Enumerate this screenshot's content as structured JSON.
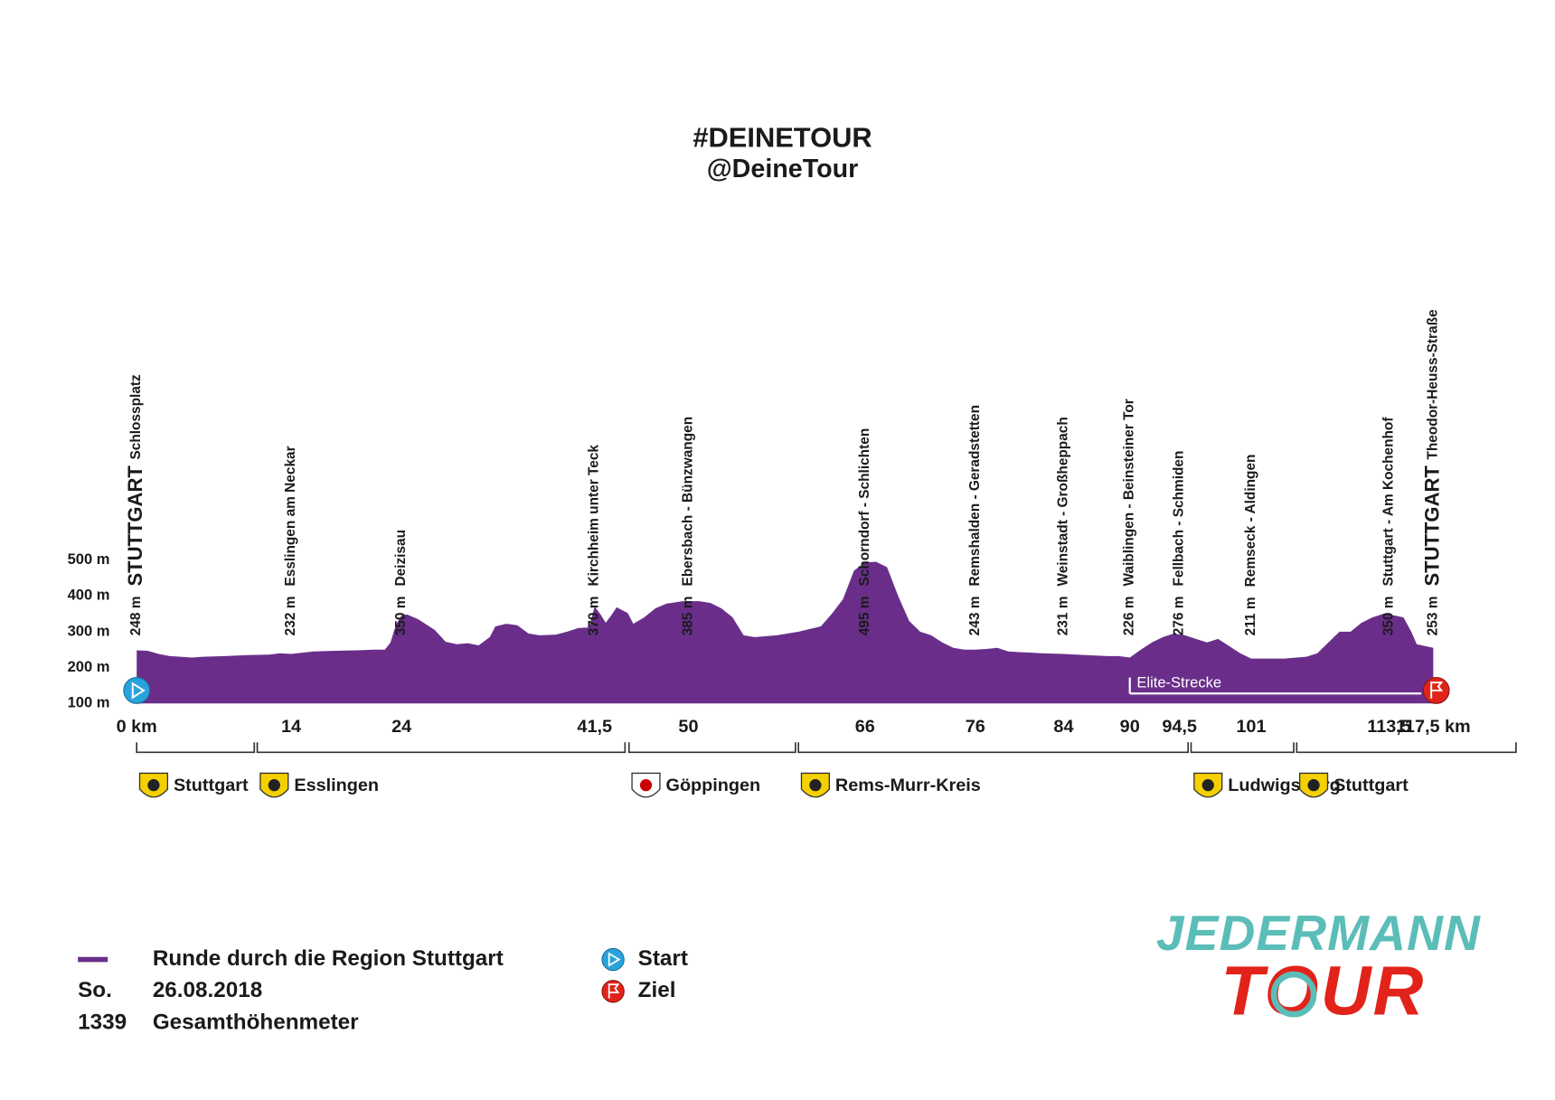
{
  "chart_data": {
    "type": "area",
    "title": "#DEINETOUR",
    "subtitle": "@DeineTour",
    "xlim": [
      0,
      117.5
    ],
    "ylim": [
      100,
      500
    ],
    "yticks": [
      {
        "value": 100,
        "label": "100 m"
      },
      {
        "value": 200,
        "label": "200 m"
      },
      {
        "value": 300,
        "label": "300 m"
      },
      {
        "value": 400,
        "label": "400 m"
      },
      {
        "value": 500,
        "label": "500 m"
      }
    ],
    "xticks": [
      {
        "value": 0,
        "label": "0 km"
      },
      14,
      24,
      {
        "value": 41.5,
        "label": "41,5"
      },
      50,
      66,
      76,
      84,
      90,
      {
        "value": 94.5,
        "label": "94,5"
      },
      101,
      {
        "value": 113.5,
        "label": "113,5"
      },
      {
        "value": 117.5,
        "label": "117,5 km"
      }
    ],
    "series": [
      {
        "name": "Runde durch die Region Stuttgart",
        "color": "#6a2e8a",
        "x": [
          0,
          1,
          2,
          3,
          4,
          5,
          6,
          8,
          10,
          12,
          13,
          14,
          16,
          18,
          20,
          21.5,
          22.5,
          23,
          23.5,
          24,
          24.5,
          25.5,
          27,
          28,
          29,
          30,
          31,
          32,
          32.5,
          33.5,
          34.5,
          35.5,
          36.5,
          38,
          39,
          40,
          41,
          41.5,
          42,
          42.5,
          43,
          43.5,
          44.5,
          45,
          46,
          47,
          48,
          49.5,
          51,
          52,
          53,
          54,
          55,
          56,
          58,
          60,
          62,
          63,
          64,
          65,
          66,
          67,
          68,
          69,
          70,
          71,
          72,
          73,
          74,
          75,
          76,
          77,
          78,
          79,
          80,
          82,
          84,
          86,
          88,
          89,
          90,
          91,
          92,
          93,
          94,
          95,
          96,
          97,
          98,
          99,
          100,
          101,
          102,
          104,
          106,
          107,
          108,
          109,
          110,
          111,
          112,
          113,
          114,
          114.8,
          115.5,
          116,
          117.5
        ],
        "values": [
          248,
          247,
          238,
          232,
          230,
          228,
          230,
          232,
          235,
          236,
          240,
          238,
          245,
          247,
          248,
          250,
          250,
          270,
          320,
          345,
          348,
          335,
          305,
          272,
          265,
          268,
          262,
          285,
          315,
          322,
          318,
          295,
          290,
          292,
          300,
          310,
          312,
          370,
          350,
          325,
          345,
          368,
          352,
          322,
          340,
          365,
          378,
          385,
          385,
          380,
          365,
          340,
          290,
          285,
          290,
          300,
          315,
          350,
          390,
          470,
          493,
          495,
          480,
          400,
          330,
          300,
          290,
          270,
          255,
          250,
          250,
          252,
          255,
          245,
          243,
          240,
          238,
          235,
          232,
          232,
          228,
          250,
          270,
          285,
          295,
          290,
          280,
          270,
          280,
          260,
          240,
          225,
          225,
          225,
          230,
          240,
          270,
          300,
          300,
          325,
          340,
          350,
          345,
          340,
          300,
          265,
          255
        ]
      }
    ],
    "waypoints": [
      {
        "elevation": "248 m",
        "name": "STUTTGART",
        "detail": "Schlossplatz"
      },
      {
        "elevation": "232 m",
        "name": "Esslingen am Neckar"
      },
      {
        "elevation": "350 m",
        "name": "Deizisau"
      },
      {
        "elevation": "370 m",
        "name": "Kirchheim unter Teck"
      },
      {
        "elevation": "385 m",
        "name": "Ebersbach - Bünzwangen"
      },
      {
        "elevation": "495 m",
        "name": "Schorndorf - Schlichten"
      },
      {
        "elevation": "243 m",
        "name": "Remshalden - Geradstetten"
      },
      {
        "elevation": "231 m",
        "name": "Weinstadt - Großheppach"
      },
      {
        "elevation": "226 m",
        "name": "Waiblingen - Beinsteiner Tor"
      },
      {
        "elevation": "276 m",
        "name": "Fellbach - Schmiden"
      },
      {
        "elevation": "211 m",
        "name": "Remseck - Aldingen"
      },
      {
        "elevation": "350 m",
        "name": "Stuttgart - Am Kochenhof"
      },
      {
        "elevation": "253 m",
        "name": "STUTTGART",
        "detail": "Theodor-Heuss-Straße"
      }
    ],
    "elite_segment": {
      "label": "Elite-Strecke",
      "from": 90,
      "to": 117.5
    },
    "start_label": "Start",
    "finish_label": "Ziel",
    "districts": [
      "Stuttgart",
      "Esslingen",
      "Göppingen",
      "Rems-Murr-Kreis",
      "Ludwigsburg",
      "Stuttgart"
    ]
  },
  "legend_info": {
    "day": "So.",
    "date": "26.08.2018",
    "total_climb": 1339,
    "total_climb_label": "Gesamthöhenmeter"
  },
  "logo": {
    "line1": "JEDERMANN",
    "line2": "TOUR"
  }
}
